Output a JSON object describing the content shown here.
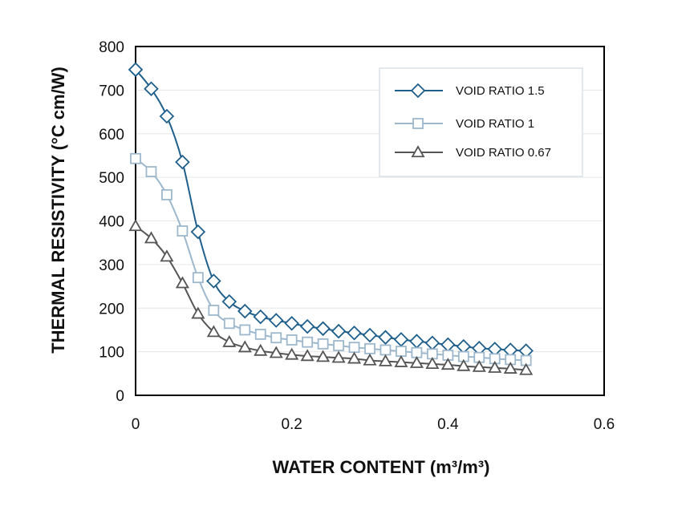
{
  "chart_data": {
    "type": "line",
    "title": "",
    "xlabel": "WATER CONTENT (m³/m³)",
    "ylabel": "THERMAL RESISTIVITY (°C cm/W)",
    "xlim": [
      0,
      0.6
    ],
    "ylim": [
      0,
      800
    ],
    "x_ticks": [
      "0",
      "0.2",
      "0.4",
      "0.6"
    ],
    "y_ticks": [
      "0",
      "100",
      "200",
      "300",
      "400",
      "500",
      "600",
      "700",
      "800"
    ],
    "grid": "horizontal",
    "legend_position": "top-right",
    "series": [
      {
        "name": "VOID RATIO 1.5",
        "color": "#1f5f8b",
        "marker": "diamond",
        "x": [
          0,
          0.02,
          0.04,
          0.06,
          0.08,
          0.1,
          0.12,
          0.14,
          0.16,
          0.18,
          0.2,
          0.22,
          0.24,
          0.26,
          0.28,
          0.3,
          0.32,
          0.34,
          0.36,
          0.38,
          0.4,
          0.42,
          0.44,
          0.46,
          0.48,
          0.5
        ],
        "y": [
          747,
          703,
          640,
          535,
          375,
          262,
          215,
          193,
          180,
          172,
          165,
          158,
          153,
          147,
          143,
          138,
          133,
          128,
          124,
          120,
          116,
          112,
          108,
          106,
          104,
          102
        ]
      },
      {
        "name": "VOID RATIO 1",
        "color": "#9db8cd",
        "marker": "square",
        "x": [
          0,
          0.02,
          0.04,
          0.06,
          0.08,
          0.1,
          0.12,
          0.14,
          0.16,
          0.18,
          0.2,
          0.22,
          0.24,
          0.26,
          0.28,
          0.3,
          0.32,
          0.34,
          0.36,
          0.38,
          0.4,
          0.42,
          0.44,
          0.46,
          0.48,
          0.5
        ],
        "y": [
          543,
          513,
          460,
          377,
          270,
          195,
          165,
          150,
          140,
          132,
          127,
          122,
          118,
          114,
          110,
          107,
          104,
          101,
          98,
          95,
          92,
          89,
          87,
          84,
          82,
          80
        ]
      },
      {
        "name": "VOID RATIO 0.67",
        "color": "#555555",
        "marker": "triangle",
        "x": [
          0,
          0.02,
          0.04,
          0.06,
          0.08,
          0.1,
          0.12,
          0.14,
          0.16,
          0.18,
          0.2,
          0.22,
          0.24,
          0.26,
          0.28,
          0.3,
          0.32,
          0.34,
          0.36,
          0.38,
          0.4,
          0.42,
          0.44,
          0.46,
          0.48,
          0.5
        ],
        "y": [
          388,
          360,
          318,
          257,
          187,
          145,
          122,
          110,
          102,
          97,
          93,
          90,
          88,
          86,
          84,
          80,
          78,
          76,
          74,
          72,
          70,
          67,
          65,
          63,
          61,
          58
        ]
      }
    ]
  }
}
